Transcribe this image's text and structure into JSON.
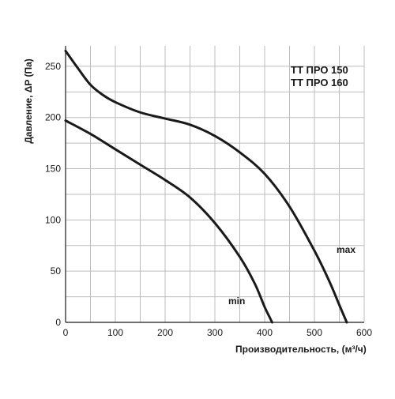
{
  "chart_data": {
    "type": "line",
    "xlabel": "Производительность, (м³/ч)",
    "ylabel": "Давление, ΔP (Па)",
    "xlim": [
      0,
      600
    ],
    "ylim": [
      0,
      270
    ],
    "xticks": [
      0,
      100,
      200,
      300,
      400,
      500,
      600
    ],
    "yticks": [
      0,
      50,
      100,
      150,
      200,
      250
    ],
    "grid": true,
    "annotations": [
      "ТТ ПРО 150",
      "ТТ ПРО 160"
    ],
    "series": [
      {
        "name": "max",
        "color": "#1a1a1a",
        "x": [
          0,
          25,
          50,
          75,
          100,
          150,
          200,
          250,
          300,
          350,
          400,
          450,
          500,
          530,
          550,
          565
        ],
        "y": [
          265,
          248,
          232,
          222,
          215,
          205,
          199,
          193,
          182,
          166,
          145,
          113,
          70,
          40,
          17,
          0
        ]
      },
      {
        "name": "min",
        "color": "#1a1a1a",
        "x": [
          0,
          50,
          100,
          150,
          200,
          250,
          300,
          350,
          380,
          400,
          410,
          415
        ],
        "y": [
          197,
          184,
          169,
          154,
          139,
          122,
          97,
          64,
          38,
          15,
          5,
          0
        ]
      }
    ]
  }
}
